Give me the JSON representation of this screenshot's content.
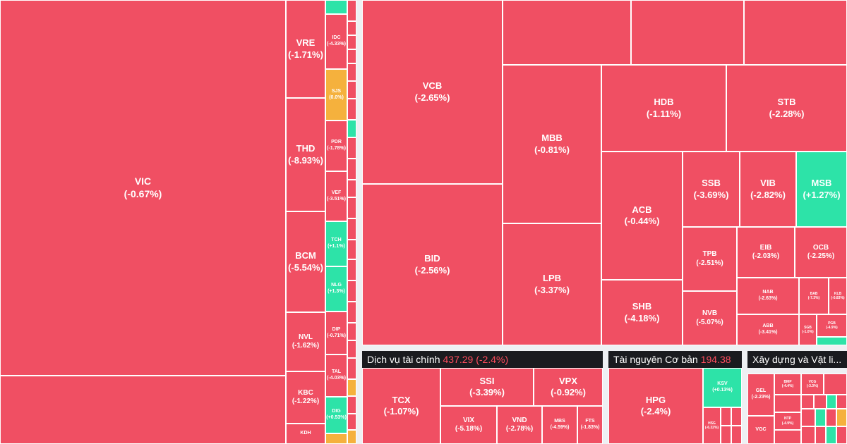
{
  "colors": {
    "down": "#f04f63",
    "up": "#2de3a8",
    "flat": "#f5b13d",
    "header_bg": "#1a1b1f",
    "header_value": "#ff4d5e"
  },
  "realestate": {
    "tiles": [
      {
        "symbol": "VIC",
        "change": "(-0.67%)"
      },
      {
        "symbol": "VRE",
        "change": "(-1.71%)"
      },
      {
        "symbol": "THD",
        "change": "(-8.93%)"
      },
      {
        "symbol": "BCM",
        "change": "(-5.54%)"
      },
      {
        "symbol": "NVL",
        "change": "(-1.62%)"
      },
      {
        "symbol": "KBC",
        "change": "(-1.22%)"
      },
      {
        "symbol": "KDH",
        "change": ""
      },
      {
        "symbol": "IDC",
        "change": "(-4.33%)"
      },
      {
        "symbol": "SJS",
        "change": "(0.0%)"
      },
      {
        "symbol": "PDR",
        "change": "(-1.78%)"
      },
      {
        "symbol": "VEF",
        "change": "(-3.51%)"
      },
      {
        "symbol": "TCH",
        "change": "(+1.1%)"
      },
      {
        "symbol": "NLG",
        "change": "(+1.3%)"
      },
      {
        "symbol": "DIP",
        "change": "(-0.71%)"
      },
      {
        "symbol": "TAL",
        "change": "(-4.03%)"
      },
      {
        "symbol": "DIG",
        "change": "(+0.53%)"
      }
    ]
  },
  "banking": {
    "tiles": [
      {
        "symbol": "VCB",
        "change": "(-2.65%)"
      },
      {
        "symbol": "BID",
        "change": "(-2.56%)"
      },
      {
        "symbol": "MBB",
        "change": "(-0.81%)"
      },
      {
        "symbol": "LPB",
        "change": "(-3.37%)"
      },
      {
        "symbol": "HDB",
        "change": "(-1.11%)"
      },
      {
        "symbol": "STB",
        "change": "(-2.28%)"
      },
      {
        "symbol": "ACB",
        "change": "(-0.44%)"
      },
      {
        "symbol": "SHB",
        "change": "(-4.18%)"
      },
      {
        "symbol": "SSB",
        "change": "(-3.69%)"
      },
      {
        "symbol": "VIB",
        "change": "(-2.82%)"
      },
      {
        "symbol": "MSB",
        "change": "(+1.27%)"
      },
      {
        "symbol": "TPB",
        "change": "(-2.51%)"
      },
      {
        "symbol": "NVB",
        "change": "(-5.07%)"
      },
      {
        "symbol": "EIB",
        "change": "(-2.03%)"
      },
      {
        "symbol": "OCB",
        "change": "(-2.25%)"
      },
      {
        "symbol": "NAB",
        "change": "(-2.63%)"
      },
      {
        "symbol": "ABB",
        "change": "(-3.41%)"
      },
      {
        "symbol": "BAB",
        "change": "(-7.3%)"
      },
      {
        "symbol": "KLB",
        "change": "(-0.83%)"
      },
      {
        "symbol": "PGB",
        "change": "(-4.9%)"
      },
      {
        "symbol": "SGB",
        "change": "(-1.0%)"
      }
    ]
  },
  "financial_services": {
    "header": {
      "name": "Dịch vụ tài chính",
      "value": "437.29 (-2.4%)"
    },
    "tiles": [
      {
        "symbol": "TCX",
        "change": "(-1.07%)"
      },
      {
        "symbol": "SSI",
        "change": "(-3.39%)"
      },
      {
        "symbol": "VPX",
        "change": "(-0.92%)"
      },
      {
        "symbol": "VIX",
        "change": "(-5.18%)"
      },
      {
        "symbol": "VND",
        "change": "(-2.78%)"
      },
      {
        "symbol": "MBS",
        "change": "(-4.59%)"
      },
      {
        "symbol": "FTS",
        "change": "(-1.83%)"
      }
    ]
  },
  "basic_resources": {
    "header": {
      "name": "Tài nguyên Cơ bản",
      "value": "194.38"
    },
    "tiles": [
      {
        "symbol": "HPG",
        "change": "(-2.4%)"
      },
      {
        "symbol": "KSV",
        "change": "(+0.13%)"
      },
      {
        "symbol": "HSG",
        "change": "(-6.32%)"
      }
    ]
  },
  "construction": {
    "header": {
      "name": "Xây dựng và Vật li...",
      "value": ""
    },
    "tiles": [
      {
        "symbol": "GEL",
        "change": "(-2.23%)"
      },
      {
        "symbol": "VGC",
        "change": ""
      },
      {
        "symbol": "BMP",
        "change": "(-4.4%)"
      },
      {
        "symbol": "CTD",
        "change": "(-4.8%)"
      },
      {
        "symbol": "VCG",
        "change": "(-3.3%)"
      },
      {
        "symbol": "NTP",
        "change": "(-4.9%)"
      }
    ]
  }
}
